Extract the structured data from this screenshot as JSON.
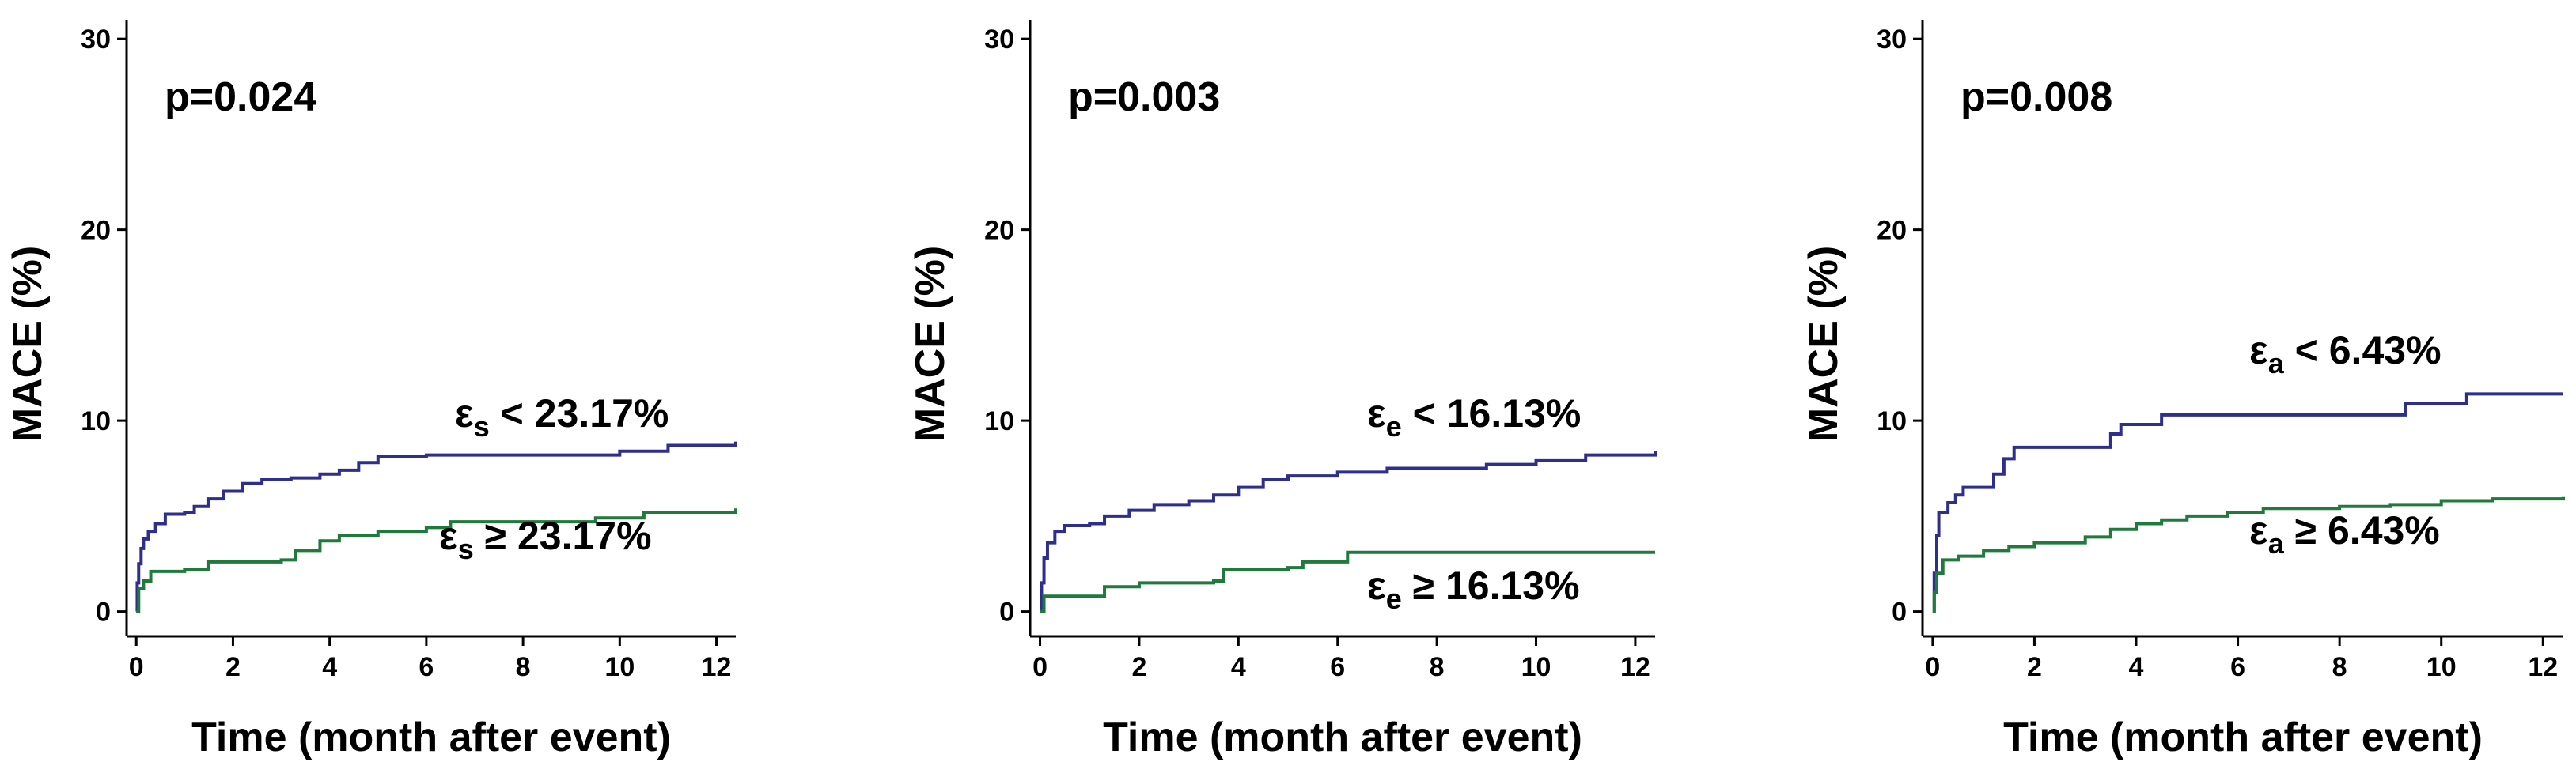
{
  "chart_data": [
    {
      "type": "line",
      "title": "",
      "pvalue": "p=0.024",
      "xlabel": "Time (month after event)",
      "ylabel": "MACE (%)",
      "xlim": [
        -0.2,
        12.4
      ],
      "ylim": [
        -1.3,
        31
      ],
      "xticks": [
        0,
        2,
        4,
        6,
        8,
        10,
        12
      ],
      "yticks": [
        0,
        10,
        20,
        30
      ],
      "series": [
        {
          "name": "εs < 23.17%",
          "label_main": "ε",
          "label_sub": "s",
          "label_rest": " < 23.17%",
          "color": "#2e2e8c",
          "values": [
            [
              0,
              0
            ],
            [
              0.02,
              1.5
            ],
            [
              0.05,
              2.5
            ],
            [
              0.1,
              3.3
            ],
            [
              0.15,
              3.8
            ],
            [
              0.25,
              4.2
            ],
            [
              0.4,
              4.6
            ],
            [
              0.6,
              5.1
            ],
            [
              1.0,
              5.2
            ],
            [
              1.2,
              5.5
            ],
            [
              1.5,
              5.9
            ],
            [
              1.8,
              6.3
            ],
            [
              2.2,
              6.7
            ],
            [
              2.6,
              6.9
            ],
            [
              3.2,
              7.0
            ],
            [
              3.8,
              7.2
            ],
            [
              4.2,
              7.4
            ],
            [
              4.6,
              7.8
            ],
            [
              5.0,
              8.1
            ],
            [
              6.0,
              8.2
            ],
            [
              8.0,
              8.2
            ],
            [
              10.0,
              8.4
            ],
            [
              11.0,
              8.7
            ],
            [
              12.4,
              8.9
            ]
          ]
        },
        {
          "name": "εs ≥ 23.17%",
          "label_main": "ε",
          "label_sub": "s",
          "label_rest": " ≥ 23.17%",
          "color": "#1f7a3c",
          "values": [
            [
              0,
              0
            ],
            [
              0.05,
              1.2
            ],
            [
              0.15,
              1.6
            ],
            [
              0.3,
              2.1
            ],
            [
              1.0,
              2.2
            ],
            [
              1.5,
              2.6
            ],
            [
              3.0,
              2.7
            ],
            [
              3.3,
              3.2
            ],
            [
              3.8,
              3.7
            ],
            [
              4.2,
              4.0
            ],
            [
              5.0,
              4.2
            ],
            [
              6.0,
              4.4
            ],
            [
              6.5,
              4.7
            ],
            [
              8.0,
              4.7
            ],
            [
              9.5,
              4.9
            ],
            [
              10.5,
              5.2
            ],
            [
              12.4,
              5.4
            ]
          ]
        }
      ]
    },
    {
      "type": "line",
      "title": "",
      "pvalue": "p=0.003",
      "xlabel": "Time (month after event)",
      "ylabel": "MACE (%)",
      "xlim": [
        -0.2,
        12.4
      ],
      "ylim": [
        -1.3,
        31
      ],
      "xticks": [
        0,
        2,
        4,
        6,
        8,
        10,
        12
      ],
      "yticks": [
        0,
        10,
        20,
        30
      ],
      "series": [
        {
          "name": "εe < 16.13%",
          "label_main": "ε",
          "label_sub": "e",
          "label_rest": " < 16.13%",
          "color": "#2e2e8c",
          "values": [
            [
              0,
              0
            ],
            [
              0.03,
              1.5
            ],
            [
              0.08,
              2.8
            ],
            [
              0.15,
              3.6
            ],
            [
              0.3,
              4.2
            ],
            [
              0.5,
              4.5
            ],
            [
              1.0,
              4.6
            ],
            [
              1.3,
              5.0
            ],
            [
              1.8,
              5.3
            ],
            [
              2.3,
              5.6
            ],
            [
              3.0,
              5.8
            ],
            [
              3.5,
              6.1
            ],
            [
              4.0,
              6.5
            ],
            [
              4.5,
              6.9
            ],
            [
              5.0,
              7.1
            ],
            [
              6.0,
              7.3
            ],
            [
              7.0,
              7.5
            ],
            [
              8.0,
              7.5
            ],
            [
              9.0,
              7.7
            ],
            [
              10.0,
              7.9
            ],
            [
              11.0,
              8.2
            ],
            [
              12.4,
              8.4
            ]
          ]
        },
        {
          "name": "εe ≥ 16.13%",
          "label_main": "ε",
          "label_sub": "e",
          "label_rest": " ≥ 16.13%",
          "color": "#1f7a3c",
          "values": [
            [
              0,
              0
            ],
            [
              0.08,
              0.8
            ],
            [
              1.0,
              0.8
            ],
            [
              1.3,
              1.3
            ],
            [
              2.0,
              1.5
            ],
            [
              3.5,
              1.6
            ],
            [
              3.7,
              2.2
            ],
            [
              5.0,
              2.3
            ],
            [
              5.3,
              2.6
            ],
            [
              6.0,
              2.6
            ],
            [
              6.2,
              3.1
            ],
            [
              12.4,
              3.1
            ]
          ]
        }
      ]
    },
    {
      "type": "line",
      "title": "",
      "pvalue": "p=0.008",
      "xlabel": "Time (month after event)",
      "ylabel": "MACE (%)",
      "xlim": [
        -0.2,
        12.4
      ],
      "ylim": [
        -1.3,
        31
      ],
      "xticks": [
        0,
        2,
        4,
        6,
        8,
        10,
        12
      ],
      "yticks": [
        0,
        10,
        20,
        30
      ],
      "series": [
        {
          "name": "εa < 6.43%",
          "label_main": "ε",
          "label_sub": "a",
          "label_rest": " < 6.43%",
          "color": "#2e2e8c",
          "values": [
            [
              0,
              0
            ],
            [
              0.03,
              2.0
            ],
            [
              0.08,
              4.0
            ],
            [
              0.12,
              5.2
            ],
            [
              0.3,
              5.7
            ],
            [
              0.45,
              6.1
            ],
            [
              0.6,
              6.5
            ],
            [
              1.0,
              6.5
            ],
            [
              1.2,
              7.2
            ],
            [
              1.4,
              8.0
            ],
            [
              1.6,
              8.6
            ],
            [
              3.0,
              8.6
            ],
            [
              3.5,
              9.3
            ],
            [
              3.7,
              9.8
            ],
            [
              4.5,
              10.3
            ],
            [
              6.0,
              10.3
            ],
            [
              9.0,
              10.3
            ],
            [
              9.3,
              10.9
            ],
            [
              10.5,
              11.4
            ],
            [
              12.4,
              11.4
            ]
          ]
        },
        {
          "name": "εa ≥ 6.43%",
          "label_main": "ε",
          "label_sub": "a",
          "label_rest": " ≥ 6.43%",
          "color": "#1f7a3c",
          "values": [
            [
              0,
              0
            ],
            [
              0.03,
              1.0
            ],
            [
              0.08,
              2.0
            ],
            [
              0.2,
              2.7
            ],
            [
              0.5,
              2.9
            ],
            [
              1.0,
              3.2
            ],
            [
              1.5,
              3.4
            ],
            [
              2.0,
              3.6
            ],
            [
              3.0,
              3.9
            ],
            [
              3.5,
              4.3
            ],
            [
              4.0,
              4.6
            ],
            [
              4.5,
              4.8
            ],
            [
              5.0,
              5.0
            ],
            [
              5.8,
              5.2
            ],
            [
              6.5,
              5.4
            ],
            [
              8.0,
              5.5
            ],
            [
              9.0,
              5.6
            ],
            [
              10.0,
              5.8
            ],
            [
              11.0,
              5.9
            ],
            [
              12.4,
              6.0
            ]
          ]
        }
      ]
    }
  ]
}
